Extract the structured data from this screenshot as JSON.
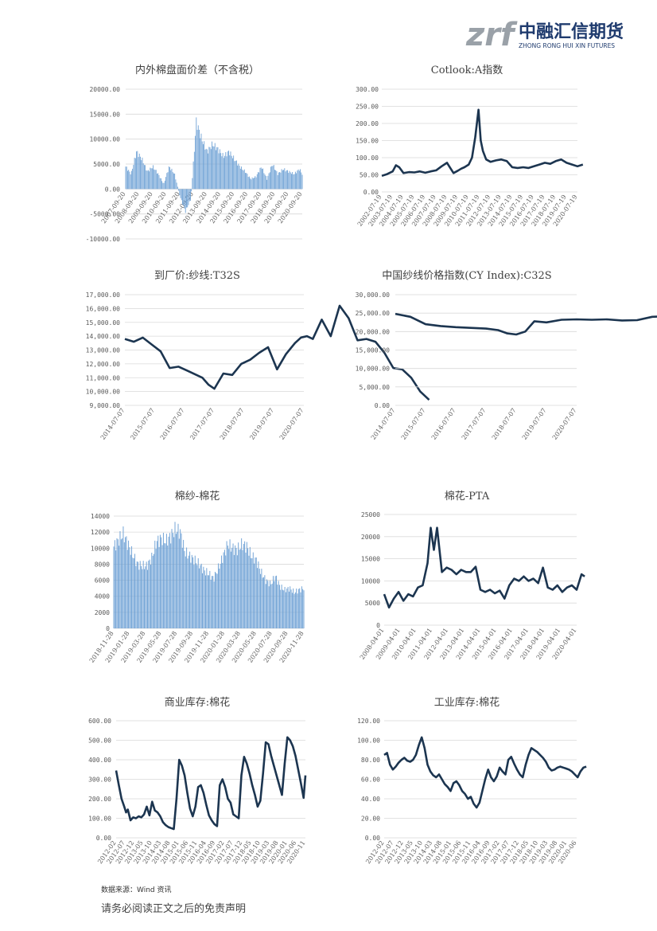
{
  "brand": {
    "name_cn": "中融汇信期货",
    "name_en": "ZHONG RONG HUI XIN FUTURES",
    "logo_letters": "zrf",
    "logo_color": "#1f3b6e",
    "logo_grey": "#9aa1a8"
  },
  "colors": {
    "line": "#1c3550",
    "bar": "#6b9fd4",
    "grid": "#d9d9d9",
    "axis_text": "#595959"
  },
  "footer": {
    "source": "数据来源：Wind 资讯",
    "disclaimer": "请务必阅读正文之后的免责声明"
  },
  "chart_data": [
    {
      "id": "c1",
      "type": "bar",
      "title": "内外棉盘面价差（不含税）",
      "y_ticks": [
        "20000.00",
        "15000.00",
        "10000.00",
        "5000.00",
        "0.00",
        "-5000.00",
        "-10000.00"
      ],
      "ylim": [
        -10000,
        20000
      ],
      "x_ticks": [
        "2007-09-20",
        "2008-09-20",
        "2009-09-20",
        "2010-09-20",
        "2011-09-20",
        "2012-09-20",
        "2013-09-20",
        "2014-09-20",
        "2015-09-20",
        "2016-09-20",
        "2017-09-20",
        "2018-09-20",
        "2019-09-20",
        "2020-09-20"
      ],
      "x": [
        0,
        0.4,
        0.8,
        1.2,
        1.6,
        2.0,
        2.4,
        2.8,
        3.2,
        3.6,
        4.0,
        4.4,
        4.8,
        5.2,
        5.6,
        6.0,
        6.4,
        6.8,
        7.2,
        7.6,
        8.0,
        8.4,
        8.8,
        9.2,
        9.6,
        10.0,
        10.4,
        10.8,
        11.2,
        11.6,
        12.0,
        12.4,
        12.8,
        13.2,
        13.6,
        14.0
      ],
      "values": [
        4500,
        3000,
        7500,
        6000,
        3500,
        4500,
        3000,
        1000,
        4500,
        3000,
        -1500,
        -4500,
        -2000,
        13500,
        10000,
        7500,
        9000,
        8000,
        6500,
        7500,
        6000,
        4500,
        3500,
        2000,
        2500,
        4500,
        2000,
        5000,
        3000,
        4000,
        3500,
        3000,
        4000,
        2000,
        3000,
        5000
      ]
    },
    {
      "id": "c2",
      "type": "line",
      "title": "Cotlook:A指数",
      "y_ticks": [
        "300.00",
        "250.00",
        "200.00",
        "150.00",
        "100.00",
        "50.00",
        "0.00"
      ],
      "ylim": [
        0,
        300
      ],
      "x_ticks": [
        "2002-07-19",
        "2003-07-19",
        "2004-07-19",
        "2005-07-19",
        "2006-07-19",
        "2007-07-19",
        "2008-07-19",
        "2009-07-19",
        "2010-07-19",
        "2011-07-19",
        "2012-07-19",
        "2013-07-19",
        "2014-07-19",
        "2015-07-19",
        "2016-07-19",
        "2017-07-19",
        "2018-07-19",
        "2019-07-19",
        "2020-07-19"
      ],
      "x": [
        0,
        0.5,
        1.0,
        1.3,
        1.6,
        2.0,
        2.5,
        3.0,
        3.5,
        4.0,
        4.5,
        5.0,
        5.5,
        6.0,
        6.3,
        6.6,
        7.0,
        7.3,
        7.6,
        8.0,
        8.3,
        8.6,
        8.9,
        9.1,
        9.3,
        9.6,
        10.0,
        10.5,
        11.0,
        11.5,
        12.0,
        12.5,
        13.0,
        13.5,
        14.0,
        14.5,
        15.0,
        15.5,
        16.0,
        16.5,
        17.0,
        17.5,
        18.0,
        18.5
      ],
      "values": [
        47,
        52,
        60,
        78,
        72,
        55,
        58,
        57,
        60,
        56,
        60,
        63,
        75,
        85,
        70,
        55,
        62,
        68,
        72,
        80,
        100,
        160,
        240,
        150,
        120,
        95,
        88,
        92,
        95,
        90,
        72,
        70,
        72,
        70,
        75,
        80,
        85,
        82,
        90,
        95,
        85,
        80,
        75,
        80
      ]
    },
    {
      "id": "c3",
      "type": "line",
      "title": "到厂价:纱线:T32S",
      "y_ticks": [
        "17,000.00",
        "16,000.00",
        "15,000.00",
        "14,000.00",
        "13,000.00",
        "12,000.00",
        "11,000.00",
        "10,000.00",
        "9,000.00"
      ],
      "ylim": [
        9000,
        17000
      ],
      "x_ticks": [
        "2014-07-07",
        "2015-07-07",
        "2016-07-07",
        "2017-07-07",
        "2018-07-07",
        "2019-07-07",
        "2020-07-07"
      ],
      "x": [
        0,
        0.3,
        0.6,
        0.9,
        1.2,
        1.5,
        1.8,
        2.1,
        2.4,
        2.6,
        2.8,
        3.0,
        3.3,
        3.6,
        3.9,
        4.2,
        4.5,
        4.8,
        5.1,
        5.4,
        5.7,
        5.9,
        6.1,
        6.3,
        6.6,
        6.9,
        7.2,
        7.5,
        7.8,
        8.1,
        8.4,
        8.7,
        9.0,
        9.3,
        9.6,
        9.9,
        10.2
      ],
      "values": [
        13800,
        13600,
        13900,
        13400,
        12900,
        11700,
        11800,
        11500,
        11200,
        11000,
        10500,
        10200,
        11300,
        11200,
        12000,
        12300,
        12800,
        13200,
        11600,
        12700,
        13500,
        13900,
        14000,
        13800,
        15200,
        14000,
        16200,
        15300,
        13700,
        13800,
        13600,
        12800,
        11700,
        11600,
        11000,
        10000,
        9400
      ]
    },
    {
      "id": "c4",
      "type": "line",
      "title": "中国纱线价格指数(CY Index):C32S",
      "y_ticks": [
        "30,000.00",
        "25,000.00",
        "20,000.00",
        "15,000.00",
        "10,000.00",
        "5,000.00",
        "0.00"
      ],
      "ylim": [
        0,
        30000
      ],
      "x_ticks": [
        "2014-07-07",
        "2015-07-07",
        "2016-07-07",
        "2017-07-07",
        "2018-07-07",
        "2019-07-07",
        "2020-07-07"
      ],
      "x": [
        0,
        0.5,
        1.0,
        1.5,
        2.0,
        2.5,
        3.0,
        3.4,
        3.7,
        4.0,
        4.3,
        4.6,
        5.0,
        5.5,
        6.0,
        6.5,
        7.0,
        7.5,
        8.0,
        8.5,
        9.0,
        9.5,
        10.0,
        10.5,
        11.0,
        11.3,
        11.6,
        12.0,
        12.2,
        12.4
      ],
      "values": [
        24800,
        24000,
        22000,
        21500,
        21200,
        21000,
        20800,
        20400,
        19500,
        19200,
        20000,
        22800,
        22500,
        23200,
        23300,
        23200,
        23300,
        23000,
        23100,
        24000,
        24200,
        23500,
        22500,
        21500,
        21000,
        20800,
        19000,
        18800,
        18900,
        23000
      ]
    },
    {
      "id": "c5",
      "type": "bar",
      "title": "棉纱-棉花",
      "y_ticks": [
        "14000",
        "12000",
        "10000",
        "8000",
        "6000",
        "4000",
        "2000",
        "0"
      ],
      "ylim": [
        0,
        14000
      ],
      "x_ticks": [
        "2018-11-28",
        "2019-01-28",
        "2019-03-28",
        "2019-05-28",
        "2019-07-28",
        "2019-09-28",
        "2019-11-28",
        "2020-01-28",
        "2020-03-28",
        "2020-05-28",
        "2020-07-28",
        "2020-09-28",
        "2020-11-28"
      ],
      "x": [
        0,
        0.3,
        0.6,
        0.9,
        1.2,
        1.5,
        1.8,
        2.1,
        2.4,
        2.7,
        3.0,
        3.3,
        3.6,
        3.9,
        4.2,
        4.5,
        4.8,
        5.1,
        5.4,
        5.7,
        6.0,
        6.3,
        6.6,
        6.9,
        7.2,
        7.5,
        7.8,
        8.1,
        8.4,
        8.7,
        9.0,
        9.3,
        9.6,
        9.9,
        10.2,
        10.5,
        10.8,
        11.1,
        11.4,
        11.7,
        12.0
      ],
      "values": [
        10200,
        11000,
        11800,
        10500,
        9200,
        8000,
        7800,
        7800,
        8800,
        10800,
        11200,
        10900,
        11500,
        12400,
        12000,
        9500,
        9000,
        8500,
        8000,
        7200,
        6800,
        6200,
        7500,
        9000,
        10500,
        10000,
        9800,
        10500,
        10200,
        9000,
        8500,
        7000,
        6000,
        5500,
        6500,
        5200,
        4800,
        5000,
        4500,
        4800,
        5000
      ]
    },
    {
      "id": "c6",
      "type": "line",
      "title": "棉花-PTA",
      "y_ticks": [
        "25000",
        "20000",
        "15000",
        "10000",
        "5000",
        "0"
      ],
      "ylim": [
        0,
        25000
      ],
      "x_ticks": [
        "2008-04-01",
        "2009-04-01",
        "2010-04-01",
        "2011-04-01",
        "2012-04-01",
        "2013-04-01",
        "2014-04-01",
        "2015-04-01",
        "2016-04-01",
        "2017-04-01",
        "2018-04-01",
        "2019-04-01",
        "2020-04-01"
      ],
      "x": [
        0,
        0.3,
        0.6,
        0.9,
        1.2,
        1.5,
        1.8,
        2.1,
        2.4,
        2.7,
        2.9,
        3.1,
        3.3,
        3.6,
        3.9,
        4.2,
        4.5,
        4.8,
        5.1,
        5.4,
        5.7,
        6.0,
        6.3,
        6.6,
        6.9,
        7.2,
        7.5,
        7.8,
        8.1,
        8.4,
        8.7,
        9.0,
        9.3,
        9.6,
        9.9,
        10.2,
        10.5,
        10.8,
        11.1,
        11.4,
        11.7,
        12.0,
        12.3,
        12.5
      ],
      "values": [
        7000,
        4000,
        6000,
        7500,
        5500,
        7000,
        6500,
        8500,
        9000,
        14000,
        22000,
        17000,
        22000,
        12000,
        13000,
        12500,
        11500,
        12500,
        12000,
        12000,
        13200,
        8000,
        7500,
        8000,
        7200,
        7800,
        6000,
        9000,
        10500,
        10000,
        11000,
        10000,
        10500,
        9500,
        13000,
        8500,
        8000,
        9000,
        7500,
        8500,
        9000,
        8000,
        11500,
        11000
      ]
    },
    {
      "id": "c7",
      "type": "line",
      "title": "商业库存:棉花",
      "y_ticks": [
        "600.00",
        "500.00",
        "400.00",
        "300.00",
        "200.00",
        "100.00",
        "0.00"
      ],
      "ylim": [
        0,
        600
      ],
      "x_ticks": [
        "2012-02",
        "2012-07",
        "2012-12",
        "2013-05",
        "2013-10",
        "2014-03",
        "2014-08",
        "2015-01",
        "2015-06",
        "2015-11",
        "2016-04",
        "2016-09",
        "2017-02",
        "2017-07",
        "2017-12",
        "2018-05",
        "2018-10",
        "2019-03",
        "2019-08",
        "2020-01",
        "2020-06",
        "2020-11"
      ],
      "x": [
        0,
        0.3,
        0.6,
        0.9,
        1.1,
        1.3,
        1.6,
        1.9,
        2.2,
        2.5,
        2.8,
        3.1,
        3.4,
        3.7,
        4.0,
        4.3,
        4.6,
        4.9,
        5.2,
        5.5,
        5.8,
        6.1,
        6.4,
        6.7,
        7.0,
        7.3,
        7.6,
        7.9,
        8.2,
        8.5,
        8.8,
        9.1,
        9.4,
        9.7,
        10.0,
        10.3,
        10.6,
        10.9,
        11.2,
        11.5,
        11.8,
        12.1,
        12.4,
        12.7,
        13.0,
        13.3,
        13.6,
        13.9,
        14.2,
        14.5,
        14.8,
        15.1,
        15.4,
        15.7,
        16.0,
        16.3,
        16.6,
        16.9,
        17.2,
        17.5,
        17.8,
        18.1,
        18.4,
        18.7,
        19.0,
        19.3,
        19.6,
        19.9,
        20.2,
        20.5,
        20.8,
        21.0
      ],
      "values": [
        345,
        270,
        200,
        160,
        130,
        145,
        90,
        105,
        100,
        110,
        105,
        120,
        160,
        115,
        185,
        140,
        130,
        110,
        80,
        65,
        55,
        50,
        45,
        200,
        400,
        370,
        320,
        230,
        150,
        110,
        160,
        260,
        270,
        230,
        170,
        115,
        90,
        70,
        60,
        270,
        300,
        260,
        200,
        180,
        120,
        110,
        100,
        320,
        415,
        380,
        330,
        270,
        220,
        160,
        190,
        330,
        490,
        480,
        420,
        370,
        320,
        270,
        220,
        380,
        515,
        500,
        470,
        420,
        350,
        280,
        205,
        320
      ]
    },
    {
      "id": "c8",
      "type": "line",
      "title": "工业库存:棉花",
      "y_ticks": [
        "120.00",
        "100.00",
        "80.00",
        "60.00",
        "40.00",
        "20.00",
        "0.00"
      ],
      "ylim": [
        0,
        120
      ],
      "x_ticks": [
        "2012-02",
        "2012-07",
        "2012-12",
        "2013-05",
        "2013-10",
        "2014-03",
        "2014-08",
        "2015-01",
        "2015-06",
        "2015-11",
        "2016-04",
        "2016-09",
        "2017-02",
        "2017-07",
        "2017-12",
        "2018-05",
        "2018-10",
        "2019-03",
        "2019-08",
        "2020-01",
        "2020-06"
      ],
      "x": [
        0,
        0.3,
        0.6,
        0.9,
        1.2,
        1.5,
        1.8,
        2.1,
        2.4,
        2.7,
        3.0,
        3.3,
        3.6,
        3.9,
        4.2,
        4.5,
        4.8,
        5.1,
        5.4,
        5.7,
        6.0,
        6.3,
        6.6,
        6.9,
        7.2,
        7.5,
        7.8,
        8.1,
        8.4,
        8.7,
        9.0,
        9.3,
        9.6,
        9.9,
        10.2,
        10.5,
        10.8,
        11.1,
        11.4,
        11.7,
        12.0,
        12.3,
        12.6,
        12.9,
        13.2,
        13.5,
        13.8,
        14.1,
        14.4,
        14.7,
        15.0,
        15.3,
        15.6,
        15.9,
        16.2,
        16.5,
        16.8,
        17.1,
        17.4,
        17.7,
        18.0,
        18.3,
        18.6,
        18.9,
        19.2,
        19.5,
        19.8,
        20.1,
        20.4,
        20.7,
        21.0
      ],
      "values": [
        85,
        87,
        75,
        70,
        73,
        77,
        80,
        82,
        79,
        78,
        80,
        85,
        95,
        103,
        92,
        75,
        68,
        64,
        62,
        65,
        60,
        55,
        52,
        48,
        56,
        58,
        54,
        48,
        45,
        40,
        42,
        35,
        31,
        36,
        48,
        60,
        70,
        62,
        58,
        63,
        72,
        68,
        65,
        80,
        83,
        76,
        70,
        65,
        62,
        75,
        85,
        92,
        90,
        88,
        85,
        82,
        78,
        72,
        69,
        70,
        72,
        73,
        72,
        71,
        70,
        68,
        65,
        62,
        68,
        72,
        73
      ]
    }
  ]
}
